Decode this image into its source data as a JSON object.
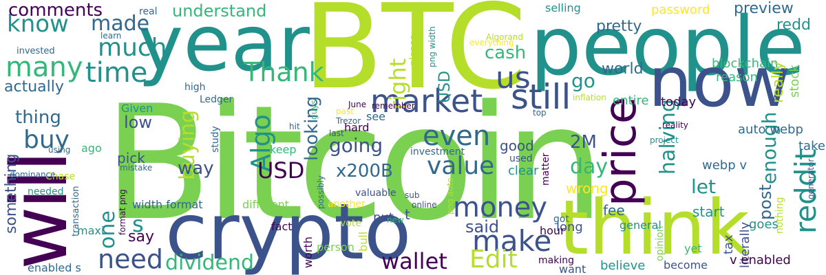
{
  "palette": {
    "deep_purple": "#440154",
    "indigo": "#3b528b",
    "blue": "#31688e",
    "teal": "#21918c",
    "sea_green": "#1fa187",
    "green": "#35b779",
    "light_green": "#7ad151",
    "yellow_green": "#b5de2b",
    "yellow": "#fde725"
  },
  "words": [
    {
      "text": "Bitcoin",
      "color": "#7ad151"
    },
    {
      "text": "BTC",
      "color": "#b5de2b"
    },
    {
      "text": "people",
      "color": "#21918c"
    },
    {
      "text": "year",
      "color": "#21918c"
    },
    {
      "text": "will",
      "color": "#440154"
    },
    {
      "text": "crypto",
      "color": "#3b528b"
    },
    {
      "text": "think",
      "color": "#b5de2b"
    },
    {
      "text": "now",
      "color": "#3b528b"
    },
    {
      "text": "price",
      "color": "#440154"
    },
    {
      "text": "market",
      "color": "#3b528b"
    },
    {
      "text": "still",
      "color": "#3b528b"
    },
    {
      "text": "money",
      "color": "#3b528b"
    },
    {
      "text": "make",
      "color": "#3b528b"
    },
    {
      "text": "need",
      "color": "#3b528b"
    },
    {
      "text": "reddit",
      "color": "#21918c"
    },
    {
      "text": "Edit",
      "color": "#b5de2b"
    },
    {
      "text": "wallet",
      "color": "#440154"
    },
    {
      "text": "value",
      "color": "#31688e"
    },
    {
      "text": "even",
      "color": "#31688e"
    },
    {
      "text": "going",
      "color": "#3b528b"
    },
    {
      "text": "time",
      "color": "#21918c"
    },
    {
      "text": "much",
      "color": "#21918c"
    },
    {
      "text": "made",
      "color": "#31688e"
    },
    {
      "text": "many",
      "color": "#35b779"
    },
    {
      "text": "know",
      "color": "#21918c"
    },
    {
      "text": "Thank",
      "color": "#35b779"
    },
    {
      "text": "us",
      "color": "#3b528b"
    },
    {
      "text": "comments",
      "color": "#440154"
    },
    {
      "text": "buy",
      "color": "#31688e"
    },
    {
      "text": "thing",
      "color": "#31688e"
    },
    {
      "text": "Algo",
      "color": "#21918c"
    },
    {
      "text": "buying",
      "color": "#b5de2b"
    },
    {
      "text": "dividend",
      "color": "#35b779"
    },
    {
      "text": "USD",
      "color": "#440154"
    },
    {
      "text": "x200B",
      "color": "#31688e"
    },
    {
      "text": "day",
      "color": "#35b779"
    },
    {
      "text": "halving",
      "color": "#21918c"
    },
    {
      "text": "enough",
      "color": "#21918c"
    },
    {
      "text": "let",
      "color": "#21918c"
    },
    {
      "text": "post",
      "color": "#31688e"
    },
    {
      "text": "said",
      "color": "#3b528b"
    },
    {
      "text": "one",
      "color": "#21918c"
    },
    {
      "text": "s",
      "color": "#21918c"
    },
    {
      "text": "go",
      "color": "#21918c"
    },
    {
      "text": "world",
      "color": "#31688e"
    },
    {
      "text": "right",
      "color": "#b5de2b"
    },
    {
      "text": "understand",
      "color": "#35b779"
    },
    {
      "text": "cash",
      "color": "#35b779"
    },
    {
      "text": "actually",
      "color": "#31688e"
    },
    {
      "text": "something",
      "color": "#3b528b"
    },
    {
      "text": "way",
      "color": "#3b528b"
    },
    {
      "text": "looking",
      "color": "#31688e"
    },
    {
      "text": "pretty",
      "color": "#31688e"
    },
    {
      "text": "say",
      "color": "#440154"
    },
    {
      "text": "2M",
      "color": "#3b528b"
    },
    {
      "text": "low",
      "color": "#3b528b"
    },
    {
      "text": "good",
      "color": "#3b528b"
    },
    {
      "text": "Given",
      "color": "#21918c"
    },
    {
      "text": "pick",
      "color": "#3b528b"
    },
    {
      "text": "USD",
      "color": "#440154"
    },
    {
      "text": "project",
      "color": "#21918c"
    },
    {
      "text": "password",
      "color": "#fde725"
    },
    {
      "text": "selling",
      "color": "#21918c"
    },
    {
      "text": "preview",
      "color": "#31688e"
    },
    {
      "text": "redd",
      "color": "#21918c"
    },
    {
      "text": "blockchain",
      "color": "#35b779"
    },
    {
      "text": "reason",
      "color": "#35b779"
    },
    {
      "text": "really",
      "color": "#b5de2b"
    },
    {
      "text": "stock",
      "color": "#7ad151"
    },
    {
      "text": "today",
      "color": "#440154"
    },
    {
      "text": "entire",
      "color": "#35b779"
    },
    {
      "text": "auto webp",
      "color": "#31688e"
    },
    {
      "text": "webp v",
      "color": "#31688e"
    },
    {
      "text": "take",
      "color": "#31688e"
    },
    {
      "text": "start",
      "color": "#21918c"
    },
    {
      "text": "fee",
      "color": "#31688e"
    },
    {
      "text": "general",
      "color": "#21918c"
    },
    {
      "text": "goes",
      "color": "#21918c"
    },
    {
      "text": "tax",
      "color": "#3b528b"
    },
    {
      "text": "literally",
      "color": "#3b528b"
    },
    {
      "text": "v enabled",
      "color": "#440154"
    },
    {
      "text": "nothing",
      "color": "#b5de2b"
    },
    {
      "text": "believe",
      "color": "#21918c"
    },
    {
      "text": "become",
      "color": "#3b528b"
    },
    {
      "text": "want",
      "color": "#3b528b"
    },
    {
      "text": "making",
      "color": "#440154"
    },
    {
      "text": "yet",
      "color": "#35b779"
    },
    {
      "text": "opinion",
      "color": "#7ad151"
    },
    {
      "text": "long",
      "color": "#3b528b"
    },
    {
      "text": "hour",
      "color": "#440154"
    },
    {
      "text": "got",
      "color": "#31688e"
    },
    {
      "text": "matter",
      "color": "#440154"
    },
    {
      "text": "clear",
      "color": "#21918c"
    },
    {
      "text": "used",
      "color": "#3b528b"
    },
    {
      "text": "wrong",
      "color": "#fde725"
    },
    {
      "text": "investment",
      "color": "#31688e"
    },
    {
      "text": "valuable",
      "color": "#3b528b"
    },
    {
      "text": "sub",
      "color": "#3b528b"
    },
    {
      "text": "another",
      "color": "#fde725"
    },
    {
      "text": "put",
      "color": "#3b528b"
    },
    {
      "text": "online",
      "color": "#3b528b"
    },
    {
      "text": "t",
      "color": "#3b528b"
    },
    {
      "text": "new",
      "color": "#35b779"
    },
    {
      "text": "bull",
      "color": "#b5de2b"
    },
    {
      "text": "worth",
      "color": "#440154"
    },
    {
      "text": "vote",
      "color": "#b5de2b"
    },
    {
      "text": "person",
      "color": "#7ad151"
    },
    {
      "text": "different",
      "color": "#7ad151"
    },
    {
      "text": "fact",
      "color": "#440154"
    },
    {
      "text": "width format",
      "color": "#31688e"
    },
    {
      "text": "maxi",
      "color": "#21918c"
    },
    {
      "text": "enabled s",
      "color": "#31688e"
    },
    {
      "text": "Chase",
      "color": "#b5de2b"
    },
    {
      "text": "needed",
      "color": "#21918c"
    },
    {
      "text": "transaction",
      "color": "#31688e"
    },
    {
      "text": "format png",
      "color": "#440154"
    },
    {
      "text": "mistake",
      "color": "#31688e"
    },
    {
      "text": "dominance",
      "color": "#31688e"
    },
    {
      "text": "using",
      "color": "#31688e"
    },
    {
      "text": "ago",
      "color": "#35b779"
    },
    {
      "text": "high",
      "color": "#31688e"
    },
    {
      "text": "learn",
      "color": "#31688e"
    },
    {
      "text": "real",
      "color": "#31688e"
    },
    {
      "text": "invested",
      "color": "#31688e"
    },
    {
      "text": "Ledger",
      "color": "#31688e"
    },
    {
      "text": "Trezor",
      "color": "#31688e"
    },
    {
      "text": "study",
      "color": "#31688e"
    },
    {
      "text": "keep",
      "color": "#35b779"
    },
    {
      "text": "hit",
      "color": "#31688e"
    },
    {
      "text": "guys",
      "color": "#35b779"
    },
    {
      "text": "June",
      "color": "#440154"
    },
    {
      "text": "remember",
      "color": "#440154"
    },
    {
      "text": "past",
      "color": "#fde725"
    },
    {
      "text": "see",
      "color": "#31688e"
    },
    {
      "text": "hard",
      "color": "#440154"
    },
    {
      "text": "last",
      "color": "#3b528b"
    },
    {
      "text": "possibly",
      "color": "#31688e"
    },
    {
      "text": "please",
      "color": "#b5de2b"
    },
    {
      "text": "png width",
      "color": "#21918c"
    },
    {
      "text": "Algorand",
      "color": "#b5de2b"
    },
    {
      "text": "everything",
      "color": "#fde725"
    },
    {
      "text": "inflation",
      "color": "#b5de2b"
    },
    {
      "text": "top",
      "color": "#31688e"
    },
    {
      "text": "png auto",
      "color": "#b5de2b"
    },
    {
      "text": "generator",
      "color": "#3b528b"
    },
    {
      "text": "reality",
      "color": "#440154"
    }
  ]
}
